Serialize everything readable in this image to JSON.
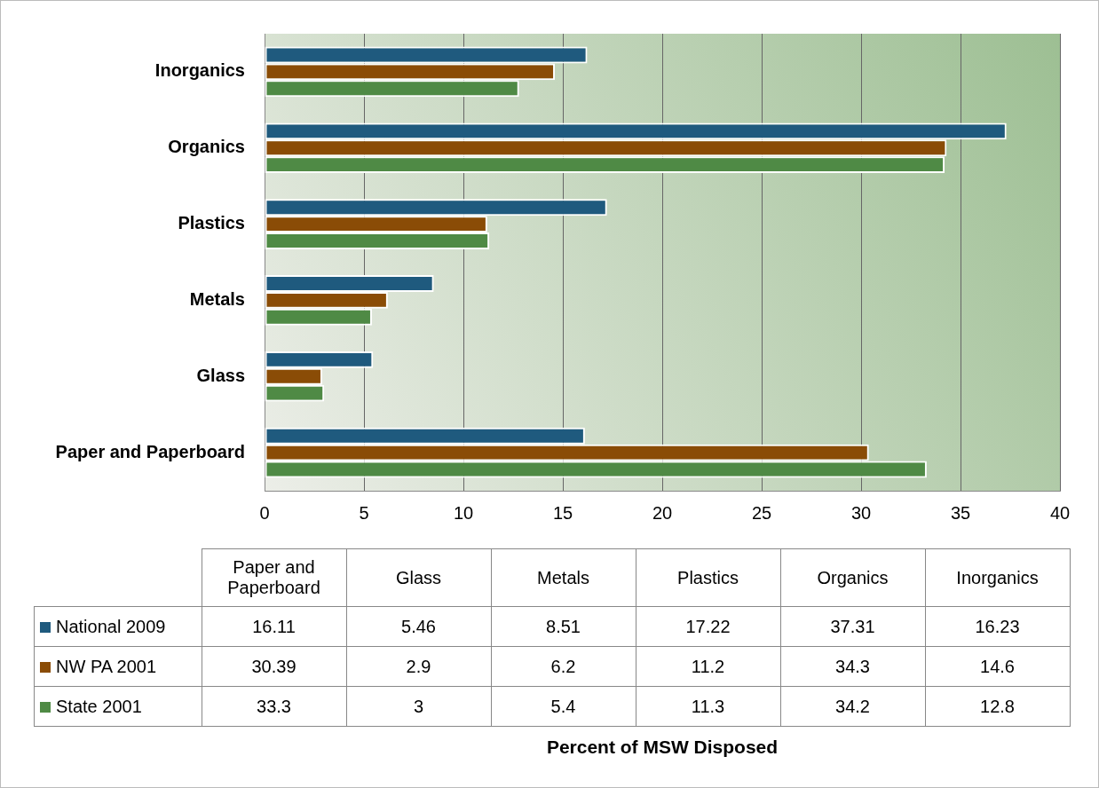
{
  "chart_data": [
    {
      "type": "bar",
      "orientation": "horizontal",
      "categories": [
        "Inorganics",
        "Organics",
        "Plastics",
        "Metals",
        "Glass",
        "Paper and Paperboard"
      ],
      "series": [
        {
          "color": "#1f5a7e",
          "values": [
            16.23,
            37.31,
            17.22,
            8.51,
            5.46,
            16.11
          ]
        },
        {
          "color": "#8a4c06",
          "values": [
            14.6,
            34.3,
            11.2,
            6.2,
            2.9,
            30.39
          ]
        },
        {
          "color": "#4f8a45",
          "values": [
            12.8,
            34.2,
            11.3,
            5.4,
            3,
            33.3
          ]
        }
      ],
      "xlim": [
        0,
        40
      ],
      "xticks": [
        0,
        5,
        10,
        15,
        20,
        25,
        30,
        35,
        40
      ],
      "grid": "x"
    },
    {
      "type": "other",
      "annotations": [
        "Percent of MSW Disposed"
      ],
      "categories": [
        "Paper and Paperboard",
        "Glass",
        "Metals",
        "Plastics",
        "Organics",
        "Inorganics"
      ],
      "series": [
        {
          "name": "National 2009",
          "color": "#1f5a7e",
          "values": [
            16.11,
            5.46,
            8.51,
            17.22,
            37.31,
            16.23
          ]
        },
        {
          "name": "NW PA 2001",
          "color": "#8a4c06",
          "values": [
            30.39,
            2.9,
            6.2,
            11.2,
            34.3,
            14.6
          ]
        },
        {
          "name": "State 2001",
          "color": "#4f8a45",
          "values": [
            33.3,
            3,
            5.4,
            11.3,
            34.2,
            12.8
          ]
        }
      ],
      "legend": "left",
      "data_labels": true
    }
  ]
}
